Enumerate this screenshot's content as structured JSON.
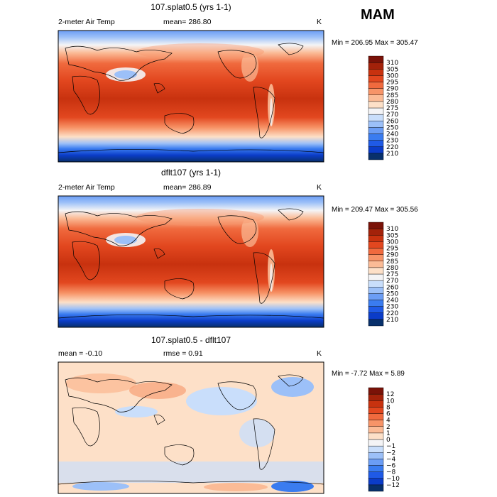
{
  "season": "MAM",
  "colors": {
    "map_bar": [
      "#08306b",
      "#0b3cc8",
      "#1f5ae6",
      "#3a7cf0",
      "#6b9df5",
      "#9cc0f8",
      "#c9defb",
      "#f4f4f6",
      "#fde0c8",
      "#fbbb96",
      "#f79468",
      "#f06a3e",
      "#e2471f",
      "#c8320f",
      "#a3220a",
      "#7a1208"
    ],
    "diff_bar": [
      "#08306b",
      "#0b3cc8",
      "#1f5ae6",
      "#3a7cf0",
      "#6b9df5",
      "#9cc0f8",
      "#c9defb",
      "#f4f4f6",
      "#fde0c8",
      "#fbbb96",
      "#f79468",
      "#f06a3e",
      "#e2471f",
      "#c8320f",
      "#a3220a",
      "#7a1208"
    ]
  },
  "panels": [
    {
      "title": "107.splat0.5 (yrs 1-1)",
      "left": "2-meter Air Temp",
      "center": "mean= 286.80",
      "units": "K",
      "minmax": "Min = 206.95 Max = 305.47"
    },
    {
      "title": "dflt107 (yrs 1-1)",
      "left": "2-meter Air Temp",
      "center": "mean= 286.89",
      "units": "K",
      "minmax": "Min = 209.47 Max = 305.56"
    },
    {
      "title": "107.splat0.5 - dflt107",
      "left": "mean =   -0.10",
      "center": "rmse =    0.91",
      "units": "K",
      "minmax": "Min =  -7.72 Max =    5.89"
    }
  ],
  "colorbars": {
    "temperature_labels": [
      "310",
      "305",
      "300",
      "295",
      "290",
      "285",
      "280",
      "275",
      "270",
      "260",
      "250",
      "240",
      "230",
      "220",
      "210"
    ],
    "difference_labels": [
      "12",
      "10",
      "8",
      "6",
      "4",
      "2",
      "1",
      "0",
      "−1",
      "−2",
      "−4",
      "−6",
      "−8",
      "−10",
      "−12"
    ]
  }
}
